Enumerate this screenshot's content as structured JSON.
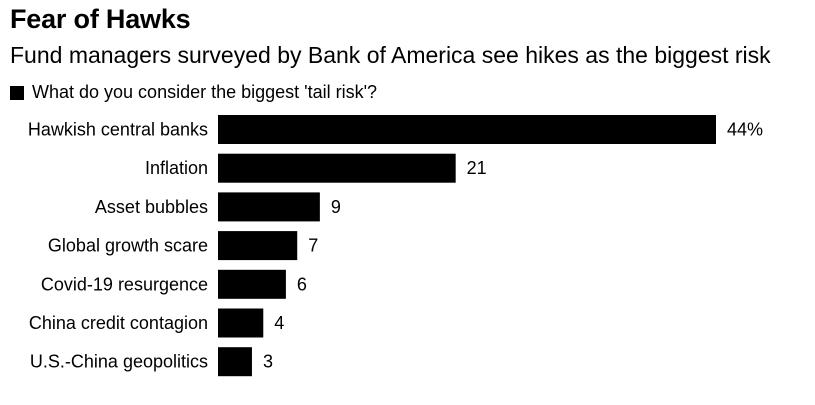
{
  "chart_data": {
    "type": "bar",
    "orientation": "horizontal",
    "title": "Fear of Hawks",
    "subtitle": "Fund managers surveyed by Bank of America see hikes as the biggest risk",
    "categories": [
      "Hawkish central banks",
      "Inflation",
      "Asset bubbles",
      "Global growth scare",
      "Covid-19 resurgence",
      "China credit contagion",
      "U.S.-China geopolitics"
    ],
    "series": [
      {
        "name": "What do you consider the biggest 'tail risk'?",
        "values": [
          44,
          21,
          9,
          7,
          6,
          4,
          3
        ]
      }
    ],
    "value_labels": [
      "44%",
      "21",
      "9",
      "7",
      "6",
      "4",
      "3"
    ],
    "xlim": [
      0,
      44
    ],
    "grid": false,
    "legend_position": "top-left",
    "bar_color": "#000000"
  }
}
